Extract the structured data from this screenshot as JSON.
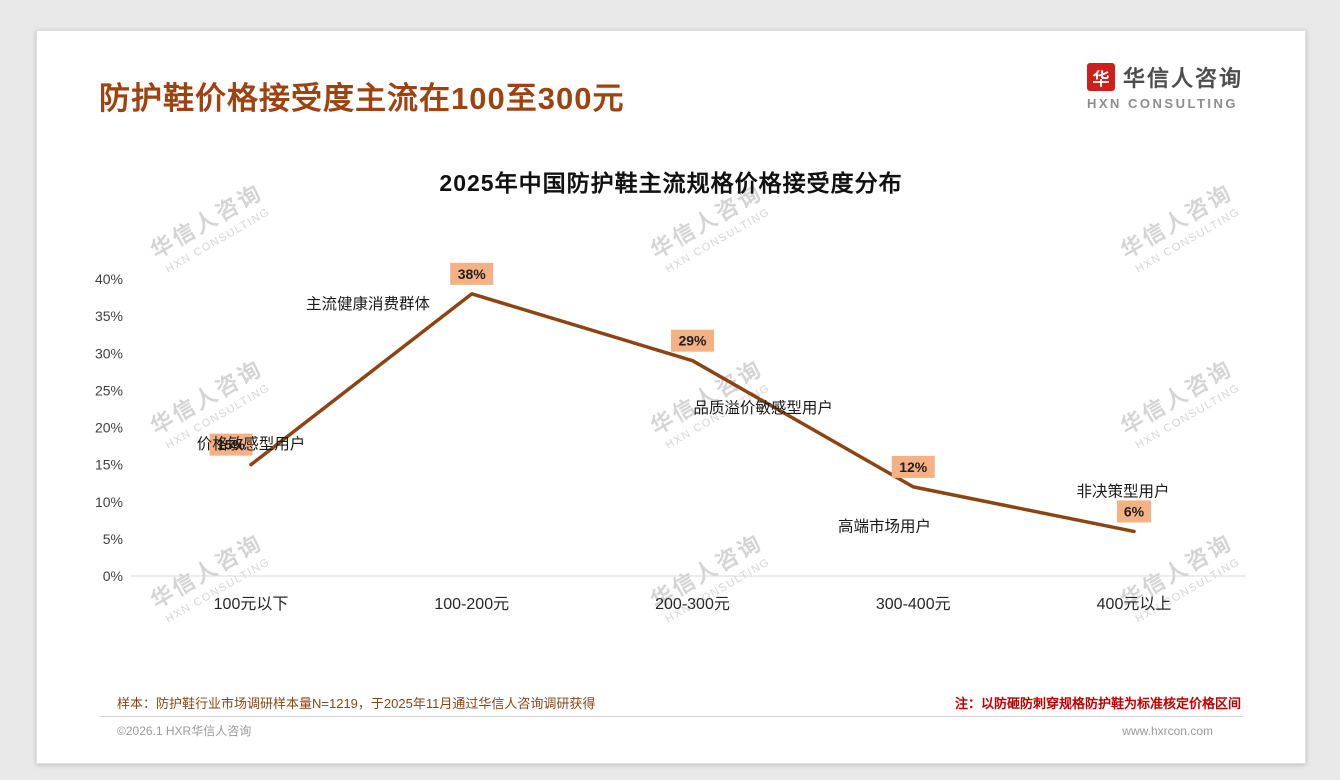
{
  "page": {
    "header_title": "防护鞋价格接受度主流在100至300元",
    "logo": {
      "icon_char": "华",
      "name": "华信人咨询",
      "subtitle": "HXN CONSULTING"
    },
    "watermark": {
      "line1": "华信人咨询",
      "line2": "HXN CONSULTING"
    },
    "notes": {
      "sample": "样本：防护鞋行业市场调研样本量N=1219，于2025年11月通过华信人咨询调研获得",
      "pricing_basis": "注：以防砸防刺穿规格防护鞋为标准核定价格区间"
    },
    "footer": {
      "copyright": "©2026.1 HXR华信人咨询",
      "website": "www.hxrcon.com"
    },
    "colors": {
      "title_brown": "#9E430F",
      "line_brown": "#8B4513",
      "label_bg": "#F4B183",
      "note_red": "#C00000",
      "logo_red": "#CE1F1A"
    }
  },
  "chart_data": {
    "type": "line",
    "title": "2025年中国防护鞋主流规格价格接受度分布",
    "categories": [
      "100元以下",
      "100-200元",
      "200-300元",
      "300-400元",
      "400元以上"
    ],
    "values": [
      15,
      38,
      29,
      12,
      6
    ],
    "value_labels": [
      "15%",
      "38%",
      "29%",
      "12%",
      "6%"
    ],
    "y_ticks": [
      "0%",
      "5%",
      "10%",
      "15%",
      "20%",
      "25%",
      "30%",
      "35%",
      "40%"
    ],
    "ylim": [
      0,
      40
    ],
    "xlabel": "",
    "ylabel": "",
    "grid": false,
    "legend": false,
    "annotations": [
      {
        "text": "价格敏感型用户",
        "x": 0,
        "y": 17.8
      },
      {
        "text": "主流健康消费群体",
        "x": 0.53,
        "y": 36.6
      },
      {
        "text": "品质溢价敏感型用户",
        "x": 2.32,
        "y": 22.6
      },
      {
        "text": "高端市场用户",
        "x": 2.87,
        "y": 6.7
      },
      {
        "text": "非决策型用户",
        "x": 3.95,
        "y": 11.4
      }
    ]
  }
}
